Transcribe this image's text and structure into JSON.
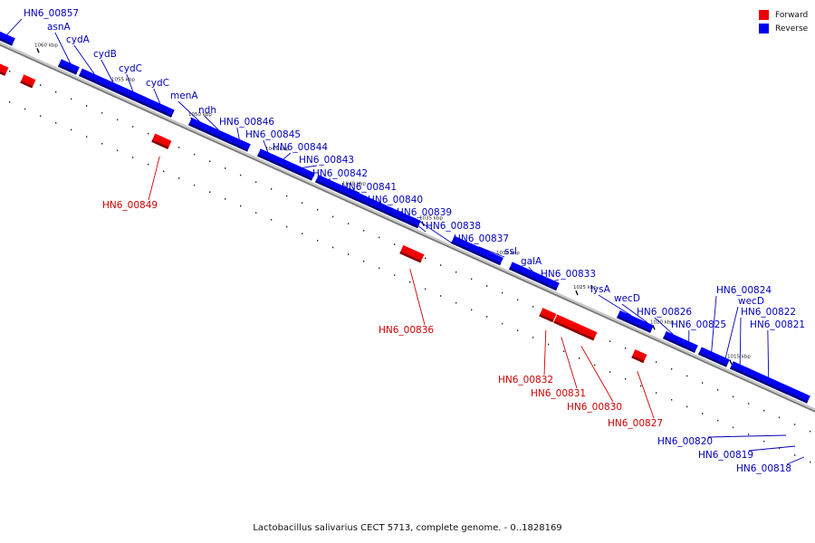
{
  "caption": "Lactobacillus salivarius CECT 5713, complete genome. - 0..1828169",
  "legend": [
    {
      "label": "Forward",
      "color": "#ee0000"
    },
    {
      "label": "Reverse",
      "color": "#0000ee"
    }
  ],
  "colors": {
    "forward": "#ee0000",
    "reverse": "#0000ee",
    "forward_label": "#cc0000",
    "reverse_label": "#0000bb",
    "axis": "#999999"
  },
  "ticks": [
    "1060 kbp",
    "1055 kbp",
    "1050 kbp",
    "1045 kbp",
    "1040 kbp",
    "1035 kbp",
    "1030 kbp",
    "1025 kbp",
    "1020 kbp",
    "1015 kbp"
  ],
  "reverse_genes": [
    "HN6_00857",
    "asnA",
    "cydA",
    "cydB",
    "cydC",
    "cydC",
    "menA",
    "ndh",
    "HN6_00846",
    "HN6_00845",
    "HN6_00844",
    "HN6_00843",
    "HN6_00842",
    "HN6_00841",
    "HN6_00840",
    "HN6_00839",
    "HN6_00838",
    "HN6_00837",
    "ssl",
    "galA",
    "HN6_00833",
    "lysA",
    "wecD",
    "HN6_00826",
    "HN6_00825",
    "HN6_00824",
    "wecD",
    "HN6_00822",
    "HN6_00821"
  ],
  "forward_genes": [
    "HN6_00849",
    "HN6_00836",
    "HN6_00832",
    "HN6_00831",
    "HN6_00830",
    "HN6_00827"
  ],
  "offtrack_labels": [
    "HN6_00820",
    "HN6_00819",
    "HN6_00818"
  ]
}
